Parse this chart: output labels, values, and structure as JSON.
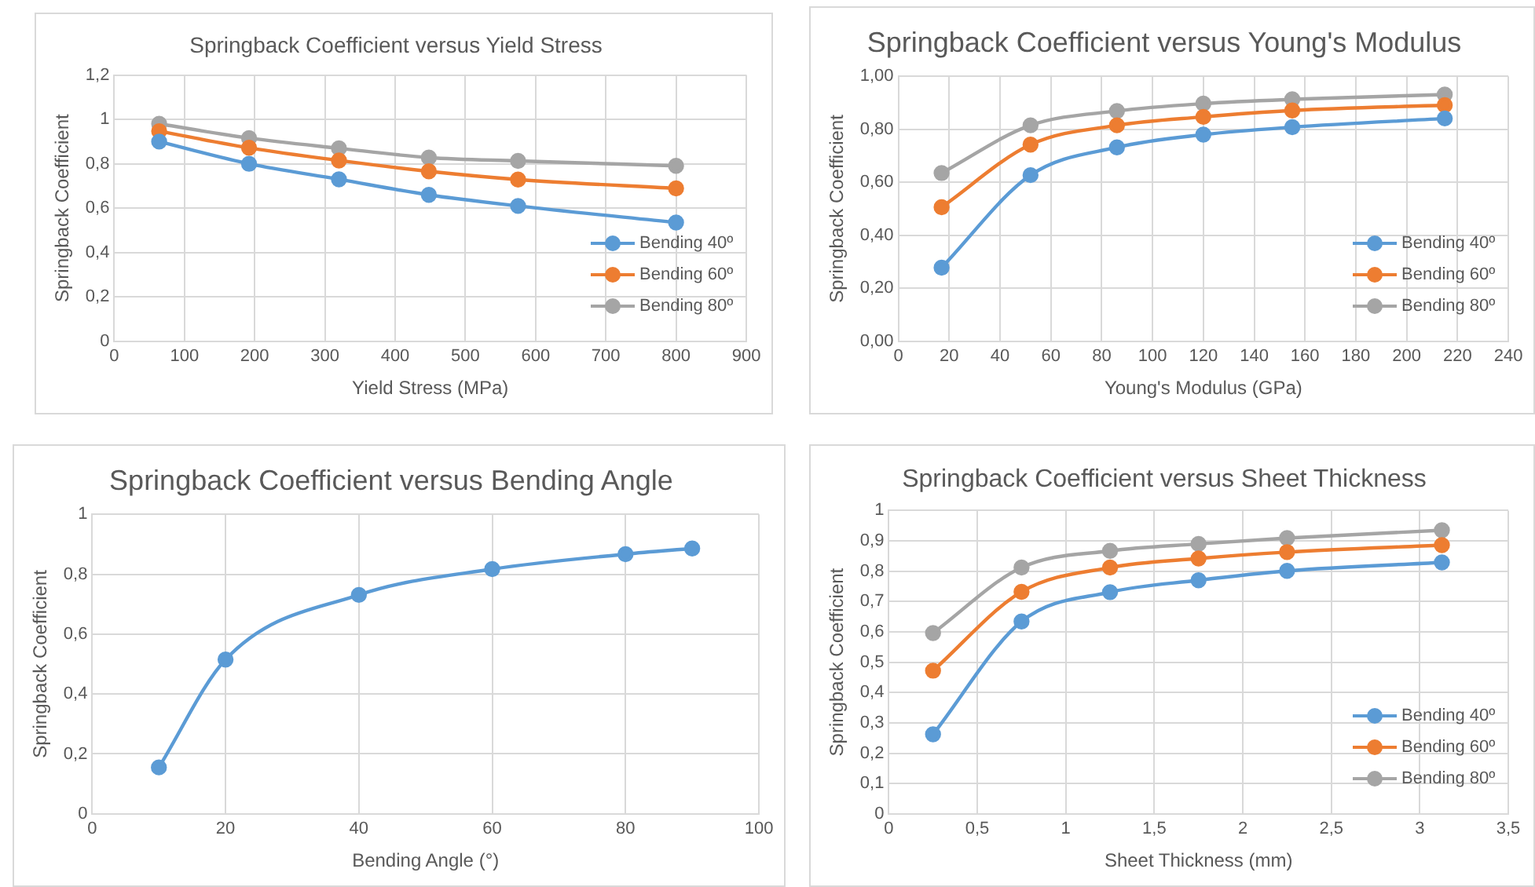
{
  "chart_data": [
    {
      "type": "line",
      "title": "Springback Coefficient versus Yield Stress",
      "xlabel": "Yield Stress (MPa)",
      "ylabel": "Springback Coefficient",
      "x": [
        64,
        192,
        320,
        448,
        575,
        800
      ],
      "series": [
        {
          "name": "Bending 40º",
          "color": "#5b9bd5",
          "values": [
            0.9,
            0.8,
            0.73,
            0.66,
            0.61,
            0.535
          ]
        },
        {
          "name": "Bending 60º",
          "color": "#ed7d31",
          "values": [
            0.947,
            0.872,
            0.815,
            0.766,
            0.729,
            0.689
          ]
        },
        {
          "name": "Bending 80º",
          "color": "#a5a5a5",
          "values": [
            0.98,
            0.916,
            0.87,
            0.828,
            0.813,
            0.791
          ]
        }
      ],
      "xlim": [
        0,
        900
      ],
      "xticks": [
        {
          "value": 0,
          "label": "0"
        },
        100,
        200,
        300,
        400,
        500,
        600,
        700,
        800,
        {
          "value": 900,
          "label": "900"
        }
      ],
      "ylim": [
        0,
        1.2
      ],
      "yticks": [
        {
          "value": 0,
          "label": "0"
        },
        {
          "value": 0.2,
          "label": "0,2"
        },
        {
          "value": 0.4,
          "label": "0,4"
        },
        {
          "value": 0.6,
          "label": "0,6"
        },
        {
          "value": 0.8,
          "label": "0,8"
        },
        {
          "value": 1,
          "label": "1"
        },
        {
          "value": 1.2,
          "label": "1,2"
        }
      ],
      "grid": true,
      "legend": "bottom right",
      "marker": "circle",
      "line_style": "solid"
    },
    {
      "type": "line",
      "title": "Springback Coefficient versus Young's Modulus",
      "xlabel": "Young's Modulus (GPa)",
      "ylabel": "Springback Coefficient",
      "x": [
        17,
        52,
        86,
        120,
        155,
        215
      ],
      "series": [
        {
          "name": "Bending 40º",
          "color": "#5b9bd5",
          "values": [
            0.278,
            0.627,
            0.732,
            0.78,
            0.808,
            0.841
          ]
        },
        {
          "name": "Bending 60º",
          "color": "#ed7d31",
          "values": [
            0.506,
            0.742,
            0.815,
            0.847,
            0.871,
            0.891
          ]
        },
        {
          "name": "Bending 80º",
          "color": "#a5a5a5",
          "values": [
            0.635,
            0.815,
            0.869,
            0.897,
            0.913,
            0.931
          ]
        }
      ],
      "xlim": [
        0,
        240
      ],
      "xticks": [
        {
          "value": 0,
          "label": "0"
        },
        20,
        40,
        60,
        80,
        100,
        120,
        140,
        160,
        180,
        200,
        220,
        {
          "value": 240,
          "label": "240"
        }
      ],
      "ylim": [
        0,
        1
      ],
      "yticks": [
        {
          "value": 0,
          "label": "0,00"
        },
        {
          "value": 0.2,
          "label": "0,20"
        },
        {
          "value": 0.4,
          "label": "0,40"
        },
        {
          "value": 0.6,
          "label": "0,60"
        },
        {
          "value": 0.8,
          "label": "0,80"
        },
        {
          "value": 1,
          "label": "1,00"
        }
      ],
      "grid": true,
      "legend": "bottom right",
      "marker": "circle",
      "line_style": "solid"
    },
    {
      "type": "line",
      "title": "Springback Coefficient versus Bending Angle",
      "xlabel": "Bending Angle (°)",
      "ylabel": "Springback Coefficient",
      "x": [
        10,
        20,
        40,
        60,
        80,
        90
      ],
      "series": [
        {
          "color": "#5b9bd5",
          "values": [
            0.155,
            0.515,
            0.731,
            0.817,
            0.867,
            0.886
          ]
        }
      ],
      "xlim": [
        0,
        100
      ],
      "xticks": [
        {
          "value": 0,
          "label": "0"
        },
        20,
        40,
        60,
        80,
        {
          "value": 100,
          "label": "100"
        }
      ],
      "ylim": [
        0,
        1
      ],
      "yticks": [
        {
          "value": 0,
          "label": "0"
        },
        {
          "value": 0.2,
          "label": "0,2"
        },
        {
          "value": 0.4,
          "label": "0,4"
        },
        {
          "value": 0.6,
          "label": "0,6"
        },
        {
          "value": 0.8,
          "label": "0,8"
        },
        {
          "value": 1,
          "label": "1"
        }
      ],
      "grid": true,
      "marker": "circle",
      "line_style": "solid"
    },
    {
      "type": "line",
      "title": "Springback Coefficient versus Sheet Thickness",
      "xlabel": "Sheet Thickness (mm)",
      "ylabel": "Springback Coefficient",
      "x": [
        0.25,
        0.75,
        1.25,
        1.75,
        2.25,
        3.125
      ],
      "series": [
        {
          "name": "Bending 40º",
          "color": "#5b9bd5",
          "values": [
            0.262,
            0.634,
            0.731,
            0.77,
            0.801,
            0.829
          ]
        },
        {
          "name": "Bending 60º",
          "color": "#ed7d31",
          "values": [
            0.472,
            0.732,
            0.812,
            0.842,
            0.863,
            0.886
          ]
        },
        {
          "name": "Bending 80º",
          "color": "#a5a5a5",
          "values": [
            0.596,
            0.812,
            0.867,
            0.89,
            0.909,
            0.935
          ]
        }
      ],
      "xlim": [
        0,
        3.5
      ],
      "xticks": [
        {
          "value": 0,
          "label": "0"
        },
        {
          "value": 0.5,
          "label": "0,5"
        },
        1,
        {
          "value": 1.5,
          "label": "1,5"
        },
        2,
        {
          "value": 2.5,
          "label": "2,5"
        },
        3,
        {
          "value": 3.5,
          "label": "3,5"
        }
      ],
      "ylim": [
        0,
        1
      ],
      "yticks": [
        {
          "value": 0,
          "label": "0"
        },
        {
          "value": 0.1,
          "label": "0,1"
        },
        {
          "value": 0.2,
          "label": "0,2"
        },
        {
          "value": 0.3,
          "label": "0,3"
        },
        {
          "value": 0.4,
          "label": "0,4"
        },
        {
          "value": 0.5,
          "label": "0,5"
        },
        {
          "value": 0.6,
          "label": "0,6"
        },
        {
          "value": 0.7,
          "label": "0,7"
        },
        {
          "value": 0.8,
          "label": "0,8"
        },
        {
          "value": 0.9,
          "label": "0,9"
        },
        {
          "value": 1,
          "label": "1"
        }
      ],
      "grid": true,
      "legend": "bottom right",
      "marker": "circle",
      "line_style": "solid"
    }
  ]
}
